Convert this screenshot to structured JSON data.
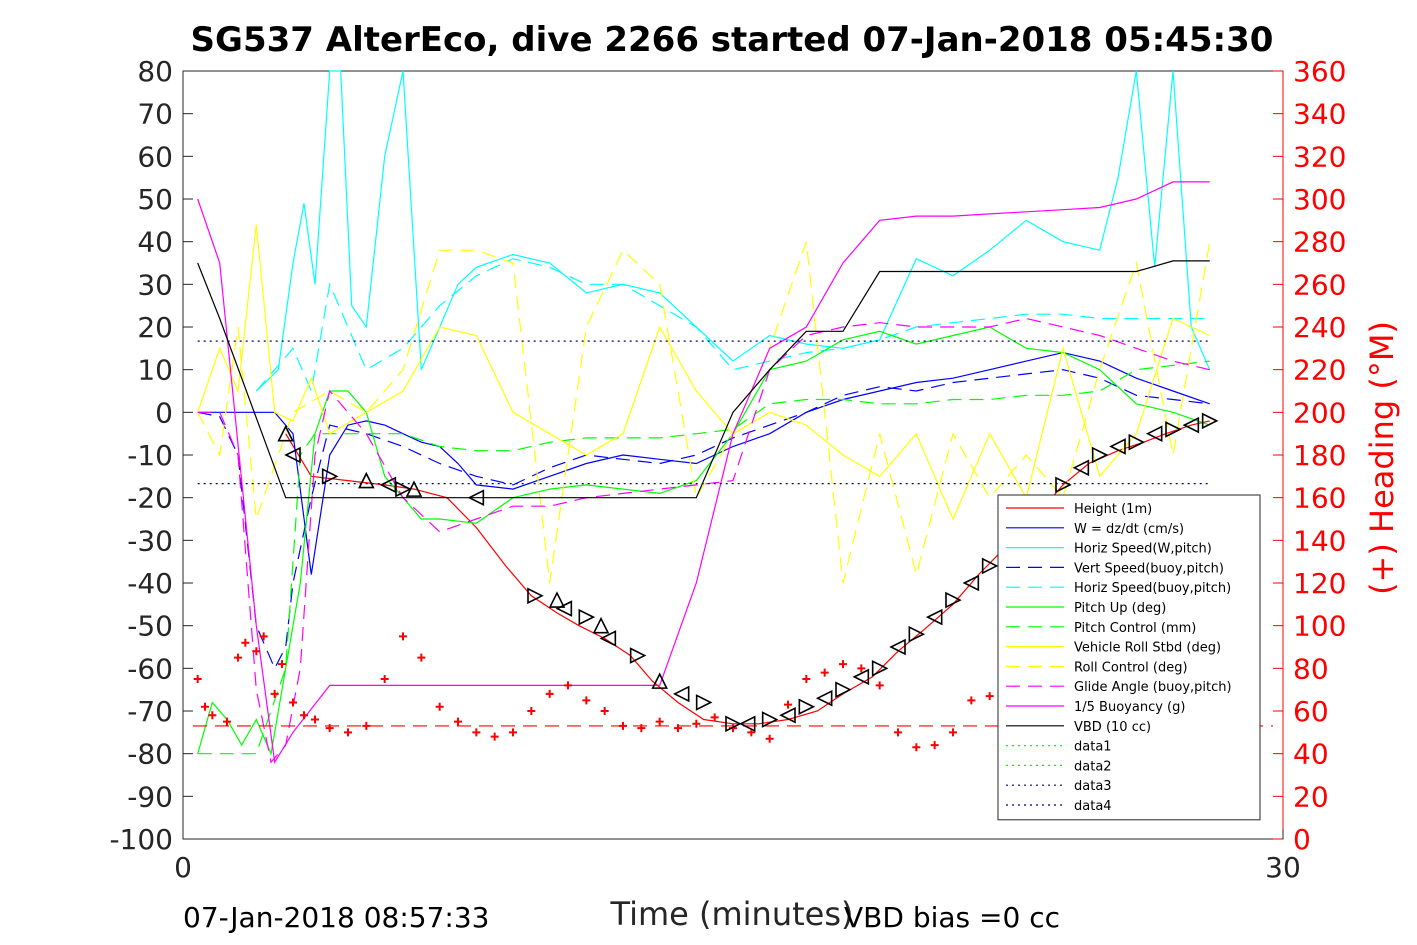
{
  "chart_data": {
    "type": "line",
    "title": "SG537 AlterEco, dive 2266 started 07-Jan-2018 05:45:30",
    "xlabel": "Time (minutes)",
    "ylabel_right": "(+) Heading (°M)",
    "xlim": [
      0,
      30
    ],
    "ylim_left": [
      -100,
      80
    ],
    "ylim_right": [
      0,
      360
    ],
    "x_ticks": [
      "0",
      "30"
    ],
    "y_ticks_left": [
      "80",
      "70",
      "60",
      "50",
      "40",
      "30",
      "20",
      "10",
      "0",
      "-10",
      "-20",
      "-30",
      "-40",
      "-50",
      "-60",
      "-70",
      "-80",
      "-90",
      "-100"
    ],
    "y_ticks_right": [
      "360",
      "340",
      "320",
      "300",
      "280",
      "260",
      "240",
      "220",
      "200",
      "180",
      "160",
      "140",
      "120",
      "100",
      "80",
      "60",
      "40",
      "20",
      "0"
    ],
    "grid": false,
    "legend_position": "lower-right",
    "colors": {
      "height": "#ff0000",
      "w": "#0000ff",
      "cyan": "#00ffff",
      "green": "#00ff00",
      "yellow": "#ffff00",
      "magenta": "#ff00ff",
      "black": "#000000",
      "navy": "#000080",
      "heading": "#ff0000"
    },
    "series": [
      {
        "name": "Height (1m)",
        "color": "#ff0000",
        "dash": "solid",
        "x": [
          2.8,
          3.5,
          4.5,
          5.5,
          6.3,
          7.2,
          8,
          8.8,
          9.5,
          10.2,
          10.8,
          11.5,
          12.2,
          12.8,
          13.5,
          14.2,
          15,
          15.7,
          16.5,
          17.3,
          18,
          18.8,
          19.5,
          20.2,
          21,
          21.7,
          22.5,
          23.3,
          24,
          24.7,
          25.5,
          26.2,
          26.8,
          27.5,
          28
        ],
        "y": [
          -5,
          -15,
          -16,
          -17,
          -18,
          -20,
          -27,
          -36,
          -43,
          -47,
          -50,
          -53,
          -57,
          -63,
          -68,
          -72,
          -73,
          -73,
          -72,
          -70,
          -66,
          -62,
          -56,
          -51,
          -45,
          -38,
          -31,
          -24,
          -17,
          -12,
          -9,
          -7,
          -5,
          -3,
          -2
        ]
      },
      {
        "name": "W = dz/dt (cm/s)",
        "color": "#0000ff",
        "dash": "solid",
        "x": [
          0.4,
          1,
          2,
          2.5,
          3,
          3.5,
          4,
          4.5,
          5,
          5.5,
          6,
          6.5,
          7,
          7.5,
          8,
          9,
          10,
          11,
          12,
          13,
          14,
          15,
          16,
          17,
          18,
          19,
          20,
          21,
          22,
          23,
          24,
          25,
          26,
          27,
          28
        ],
        "y": [
          0,
          0,
          0,
          0,
          -5,
          -38,
          -10,
          -3,
          -2,
          -3,
          -5,
          -7,
          -8,
          -12,
          -17,
          -18,
          -15,
          -12,
          -10,
          -11,
          -12,
          -8,
          -5,
          0,
          3,
          5,
          7,
          8,
          10,
          12,
          14,
          12,
          8,
          5,
          2
        ]
      },
      {
        "name": "Horiz Speed(W,pitch)",
        "color": "#00ffff",
        "dash": "solid",
        "x": [
          2,
          2.6,
          3,
          3.3,
          3.6,
          4,
          4.3,
          4.6,
          5,
          5.5,
          6,
          6.5,
          7,
          7.5,
          8,
          9,
          10,
          11,
          12,
          13,
          14,
          15,
          16,
          17,
          18,
          19,
          20,
          21,
          22,
          23,
          24,
          25,
          25.5,
          26,
          26.5,
          27,
          27.5,
          28
        ],
        "y": [
          5,
          10,
          35,
          49,
          30,
          80,
          80,
          25,
          20,
          60,
          80,
          10,
          20,
          30,
          34,
          37,
          35,
          28,
          30,
          28,
          20,
          12,
          18,
          16,
          15,
          17,
          36,
          32,
          38,
          45,
          40,
          38,
          55,
          80,
          34,
          80,
          20,
          10
        ]
      },
      {
        "name": "Vert Speed(buoy,pitch)",
        "color": "#0000ff",
        "dash": "dashed",
        "x": [
          0.4,
          1,
          1.5,
          2,
          2.5,
          2.8,
          3,
          3.5,
          4,
          5,
          6,
          7,
          8,
          9,
          10,
          11,
          12,
          13,
          14,
          15,
          16,
          17,
          18,
          19,
          20,
          21,
          22,
          23,
          24,
          25,
          26,
          27,
          28
        ],
        "y": [
          0,
          -1,
          -10,
          -50,
          -60,
          -55,
          -40,
          -20,
          -3,
          -5,
          -8,
          -12,
          -15,
          -17,
          -13,
          -10,
          -11,
          -12,
          -10,
          -6,
          -3,
          0,
          4,
          6,
          5,
          7,
          8,
          9,
          10,
          8,
          4,
          3,
          2
        ]
      },
      {
        "name": "Horiz Speed(buoy,pitch)",
        "color": "#00ffff",
        "dash": "dashed",
        "x": [
          2,
          3,
          3.5,
          4,
          5,
          6,
          7,
          8,
          9,
          10,
          11,
          12,
          13,
          14,
          15,
          16,
          17,
          18,
          19,
          20,
          21,
          22,
          23,
          24,
          25,
          26,
          27,
          28
        ],
        "y": [
          5,
          15,
          5,
          30,
          10,
          15,
          25,
          32,
          36,
          34,
          30,
          30,
          25,
          20,
          10,
          12,
          14,
          15,
          17,
          20,
          21,
          22,
          23,
          23,
          22,
          22,
          22,
          22
        ]
      },
      {
        "name": "Pitch Up (deg)",
        "color": "#00ff00",
        "dash": "solid",
        "x": [
          0.4,
          0.8,
          1.2,
          1.6,
          2,
          2.4,
          2.8,
          3.2,
          3.6,
          4,
          4.5,
          5,
          5.5,
          6,
          6.5,
          7,
          8,
          9,
          10,
          11,
          12,
          13,
          14,
          15,
          16,
          17,
          18,
          19,
          20,
          21,
          22,
          23,
          24,
          25,
          26,
          27,
          28
        ],
        "y": [
          -80,
          -68,
          -72,
          -78,
          -72,
          -80,
          -60,
          -40,
          -5,
          5,
          5,
          0,
          -15,
          -20,
          -25,
          -25,
          -26,
          -20,
          -18,
          -17,
          -18,
          -19,
          -16,
          -5,
          10,
          12,
          17,
          19,
          16,
          18,
          20,
          15,
          14,
          10,
          2,
          0,
          -3
        ]
      },
      {
        "name": "Pitch Control (mm)",
        "color": "#00ff00",
        "dash": "dashed",
        "x": [
          0.4,
          2,
          2.8,
          3.2,
          3.6,
          4,
          5,
          6,
          7,
          8,
          9,
          10,
          11,
          12,
          13,
          14,
          15,
          16,
          17,
          18,
          19,
          20,
          21,
          22,
          23,
          24,
          25,
          26,
          27,
          28
        ],
        "y": [
          -80,
          -80,
          -60,
          -10,
          -5,
          -5,
          -5,
          -5,
          -8,
          -9,
          -9,
          -7,
          -6,
          -6,
          -6,
          -5,
          -4,
          2,
          3,
          3,
          2,
          2,
          3,
          3,
          4,
          4,
          5,
          10,
          11,
          12
        ]
      },
      {
        "name": "Vehicle Roll Stbd (deg)",
        "color": "#ffff00",
        "dash": "solid",
        "x": [
          0.4,
          1,
          1.5,
          2,
          2.5,
          3,
          3.5,
          4,
          5,
          6,
          7,
          8,
          9,
          10,
          11,
          12,
          13,
          14,
          15,
          16,
          17,
          18,
          19,
          20,
          21,
          22,
          23,
          24,
          25,
          26,
          27,
          28
        ],
        "y": [
          0,
          15,
          5,
          44,
          0,
          -2,
          8,
          -5,
          0,
          5,
          20,
          18,
          0,
          -5,
          -10,
          -5,
          20,
          5,
          -5,
          0,
          -3,
          -10,
          -15,
          -5,
          -25,
          -5,
          -20,
          15,
          -15,
          -5,
          22,
          18
        ]
      },
      {
        "name": "Roll Control (deg)",
        "color": "#ffff00",
        "dash": "dashed",
        "x": [
          0.4,
          1,
          1.5,
          2,
          3,
          4,
          5,
          6,
          7,
          8,
          9,
          10,
          11,
          12,
          13,
          14,
          15,
          16,
          17,
          18,
          19,
          20,
          21,
          22,
          23,
          24,
          25,
          26,
          27,
          28
        ],
        "y": [
          0,
          -10,
          20,
          -25,
          0,
          5,
          0,
          10,
          38,
          38,
          35,
          -40,
          20,
          38,
          30,
          -20,
          -5,
          15,
          40,
          -40,
          -5,
          -38,
          -5,
          -20,
          -10,
          -20,
          10,
          35,
          -10,
          40
        ]
      },
      {
        "name": "Glide Angle (buoy,pitch)",
        "color": "#ff00ff",
        "dash": "dashed",
        "x": [
          0.4,
          1,
          1.5,
          2,
          2.4,
          2.8,
          3.2,
          3.6,
          4,
          5,
          6,
          7,
          8,
          9,
          10,
          11,
          12,
          13,
          14,
          15,
          16,
          17,
          18,
          19,
          20,
          21,
          22,
          23,
          24,
          25,
          26,
          27,
          28
        ],
        "y": [
          0,
          0,
          -10,
          -65,
          -82,
          -78,
          -60,
          -10,
          5,
          -5,
          -20,
          -28,
          -25,
          -22,
          -22,
          -20,
          -19,
          -18,
          -17,
          -16,
          10,
          18,
          20,
          21,
          20,
          20,
          20,
          22,
          20,
          18,
          15,
          12,
          10
        ]
      },
      {
        "name": "1/5 Buoyancy (g)",
        "color": "#ff00ff",
        "dash": "solid",
        "x": [
          0.4,
          1,
          2,
          2.5,
          3,
          4,
          5,
          6,
          7,
          8,
          9,
          10,
          11,
          12,
          13,
          14,
          15,
          16,
          17,
          18,
          19,
          20,
          21,
          22,
          23,
          24,
          25,
          26,
          27,
          28
        ],
        "y": [
          50,
          35,
          -50,
          -82,
          -75,
          -64,
          -64,
          -64,
          -64,
          -64,
          -64,
          -64,
          -64,
          -64,
          -64,
          -40,
          -5,
          15,
          20,
          35,
          45,
          46,
          46,
          46.5,
          47,
          47.5,
          48,
          50,
          54,
          54
        ]
      },
      {
        "name": "VBD (10 cc)",
        "color": "#000000",
        "dash": "solid",
        "x": [
          0.4,
          1,
          2.8,
          3.5,
          5,
          7,
          9,
          11,
          12,
          13,
          14,
          15,
          16,
          17,
          18,
          19,
          20,
          21,
          22,
          23,
          24,
          25,
          26,
          27,
          28
        ],
        "y": [
          35,
          22,
          -20,
          -20,
          -20,
          -20,
          -20,
          -20,
          -20,
          -20,
          -20,
          0,
          10,
          19,
          19,
          33,
          33,
          33,
          33,
          33,
          33,
          33,
          33,
          35.5,
          35.5
        ]
      },
      {
        "name": "data1",
        "color": "#00ff00",
        "dash": "dotted",
        "x": [],
        "y": []
      },
      {
        "name": "data2",
        "color": "#00ff00",
        "dash": "dotted",
        "x": [],
        "y": []
      },
      {
        "name": "data3",
        "color": "#000080",
        "dash": "dotted",
        "x": [
          0.4,
          28
        ],
        "y": [
          16.7,
          16.7
        ]
      },
      {
        "name": "data4",
        "color": "#000080",
        "dash": "dotted",
        "x": [
          0.4,
          28
        ],
        "y": [
          -16.7,
          -16.7
        ]
      }
    ],
    "heading": {
      "axis": "right",
      "color": "#ff0000",
      "target": 53,
      "x": [
        0.4,
        0.6,
        0.8,
        1.2,
        1.5,
        1.7,
        2,
        2.2,
        2.5,
        2.7,
        3,
        3.3,
        3.6,
        4,
        4.5,
        5,
        5.5,
        6,
        6.5,
        7,
        7.5,
        8,
        8.5,
        9,
        9.5,
        10,
        10.5,
        11,
        11.5,
        12,
        12.5,
        13,
        13.5,
        14,
        14.5,
        15,
        15.5,
        16,
        16.5,
        17,
        17.5,
        18,
        18.5,
        19,
        19.5,
        20,
        20.5,
        21,
        21.5,
        22,
        22.5,
        23,
        23.5,
        24,
        24.5,
        25,
        25.5,
        26,
        26.5,
        27,
        27.5,
        28
      ],
      "y": [
        75,
        62,
        58,
        55,
        85,
        92,
        88,
        95,
        68,
        82,
        64,
        58,
        56,
        52,
        50,
        53,
        75,
        95,
        85,
        62,
        55,
        50,
        48,
        50,
        60,
        68,
        72,
        65,
        60,
        53,
        52,
        55,
        52,
        54,
        57,
        52,
        50,
        47,
        63,
        75,
        78,
        82,
        80,
        72,
        50,
        43,
        44,
        50,
        65,
        67,
        55,
        44,
        48,
        62,
        67,
        66,
        54,
        58,
        66,
        68,
        64,
        70
      ]
    },
    "dive_markers_down": {
      "x": [
        2.8,
        3,
        4,
        5,
        5.6,
        6,
        6.3,
        8,
        9.6,
        10.2,
        10.4,
        11,
        11.4,
        11.6,
        12.4,
        13,
        13.6,
        14.2
      ],
      "y": [
        -5,
        -10,
        -15,
        -16,
        -17,
        -18,
        -18,
        -20,
        -43,
        -44,
        -46,
        -48,
        -50,
        -53,
        -57,
        -63,
        -66,
        -68
      ]
    },
    "climb_markers": {
      "x": [
        15,
        15.4,
        16,
        16.5,
        17,
        17.5,
        18,
        18.5,
        19,
        19.5,
        20,
        20.5,
        21,
        21.5,
        22,
        22.5,
        23,
        23.5,
        24,
        24.5,
        25,
        25.5,
        26,
        26.5,
        27,
        27.5,
        28
      ],
      "y": [
        -73,
        -73,
        -72,
        -71,
        -69,
        -67,
        -65,
        -62,
        -60,
        -55,
        -52,
        -48,
        -44,
        -40,
        -36,
        -32,
        -27,
        -22,
        -17,
        -13,
        -10,
        -8,
        -7,
        -5,
        -4,
        -3,
        -2
      ]
    },
    "legend": [
      "Height (1m)",
      "W = dz/dt (cm/s)",
      "Horiz Speed(W,pitch)",
      "Vert Speed(buoy,pitch)",
      "Horiz Speed(buoy,pitch)",
      "Pitch Up (deg)",
      "Pitch Control (mm)",
      "Vehicle Roll Stbd (deg)",
      "Roll Control (deg)",
      "Glide Angle (buoy,pitch)",
      "1/5 Buoyancy (g)",
      "VBD (10 cc)",
      "data1",
      "data2",
      "data3",
      "data4"
    ]
  },
  "footer": {
    "left": "07-Jan-2018 08:57:33",
    "right": "VBD bias =0 cc"
  }
}
